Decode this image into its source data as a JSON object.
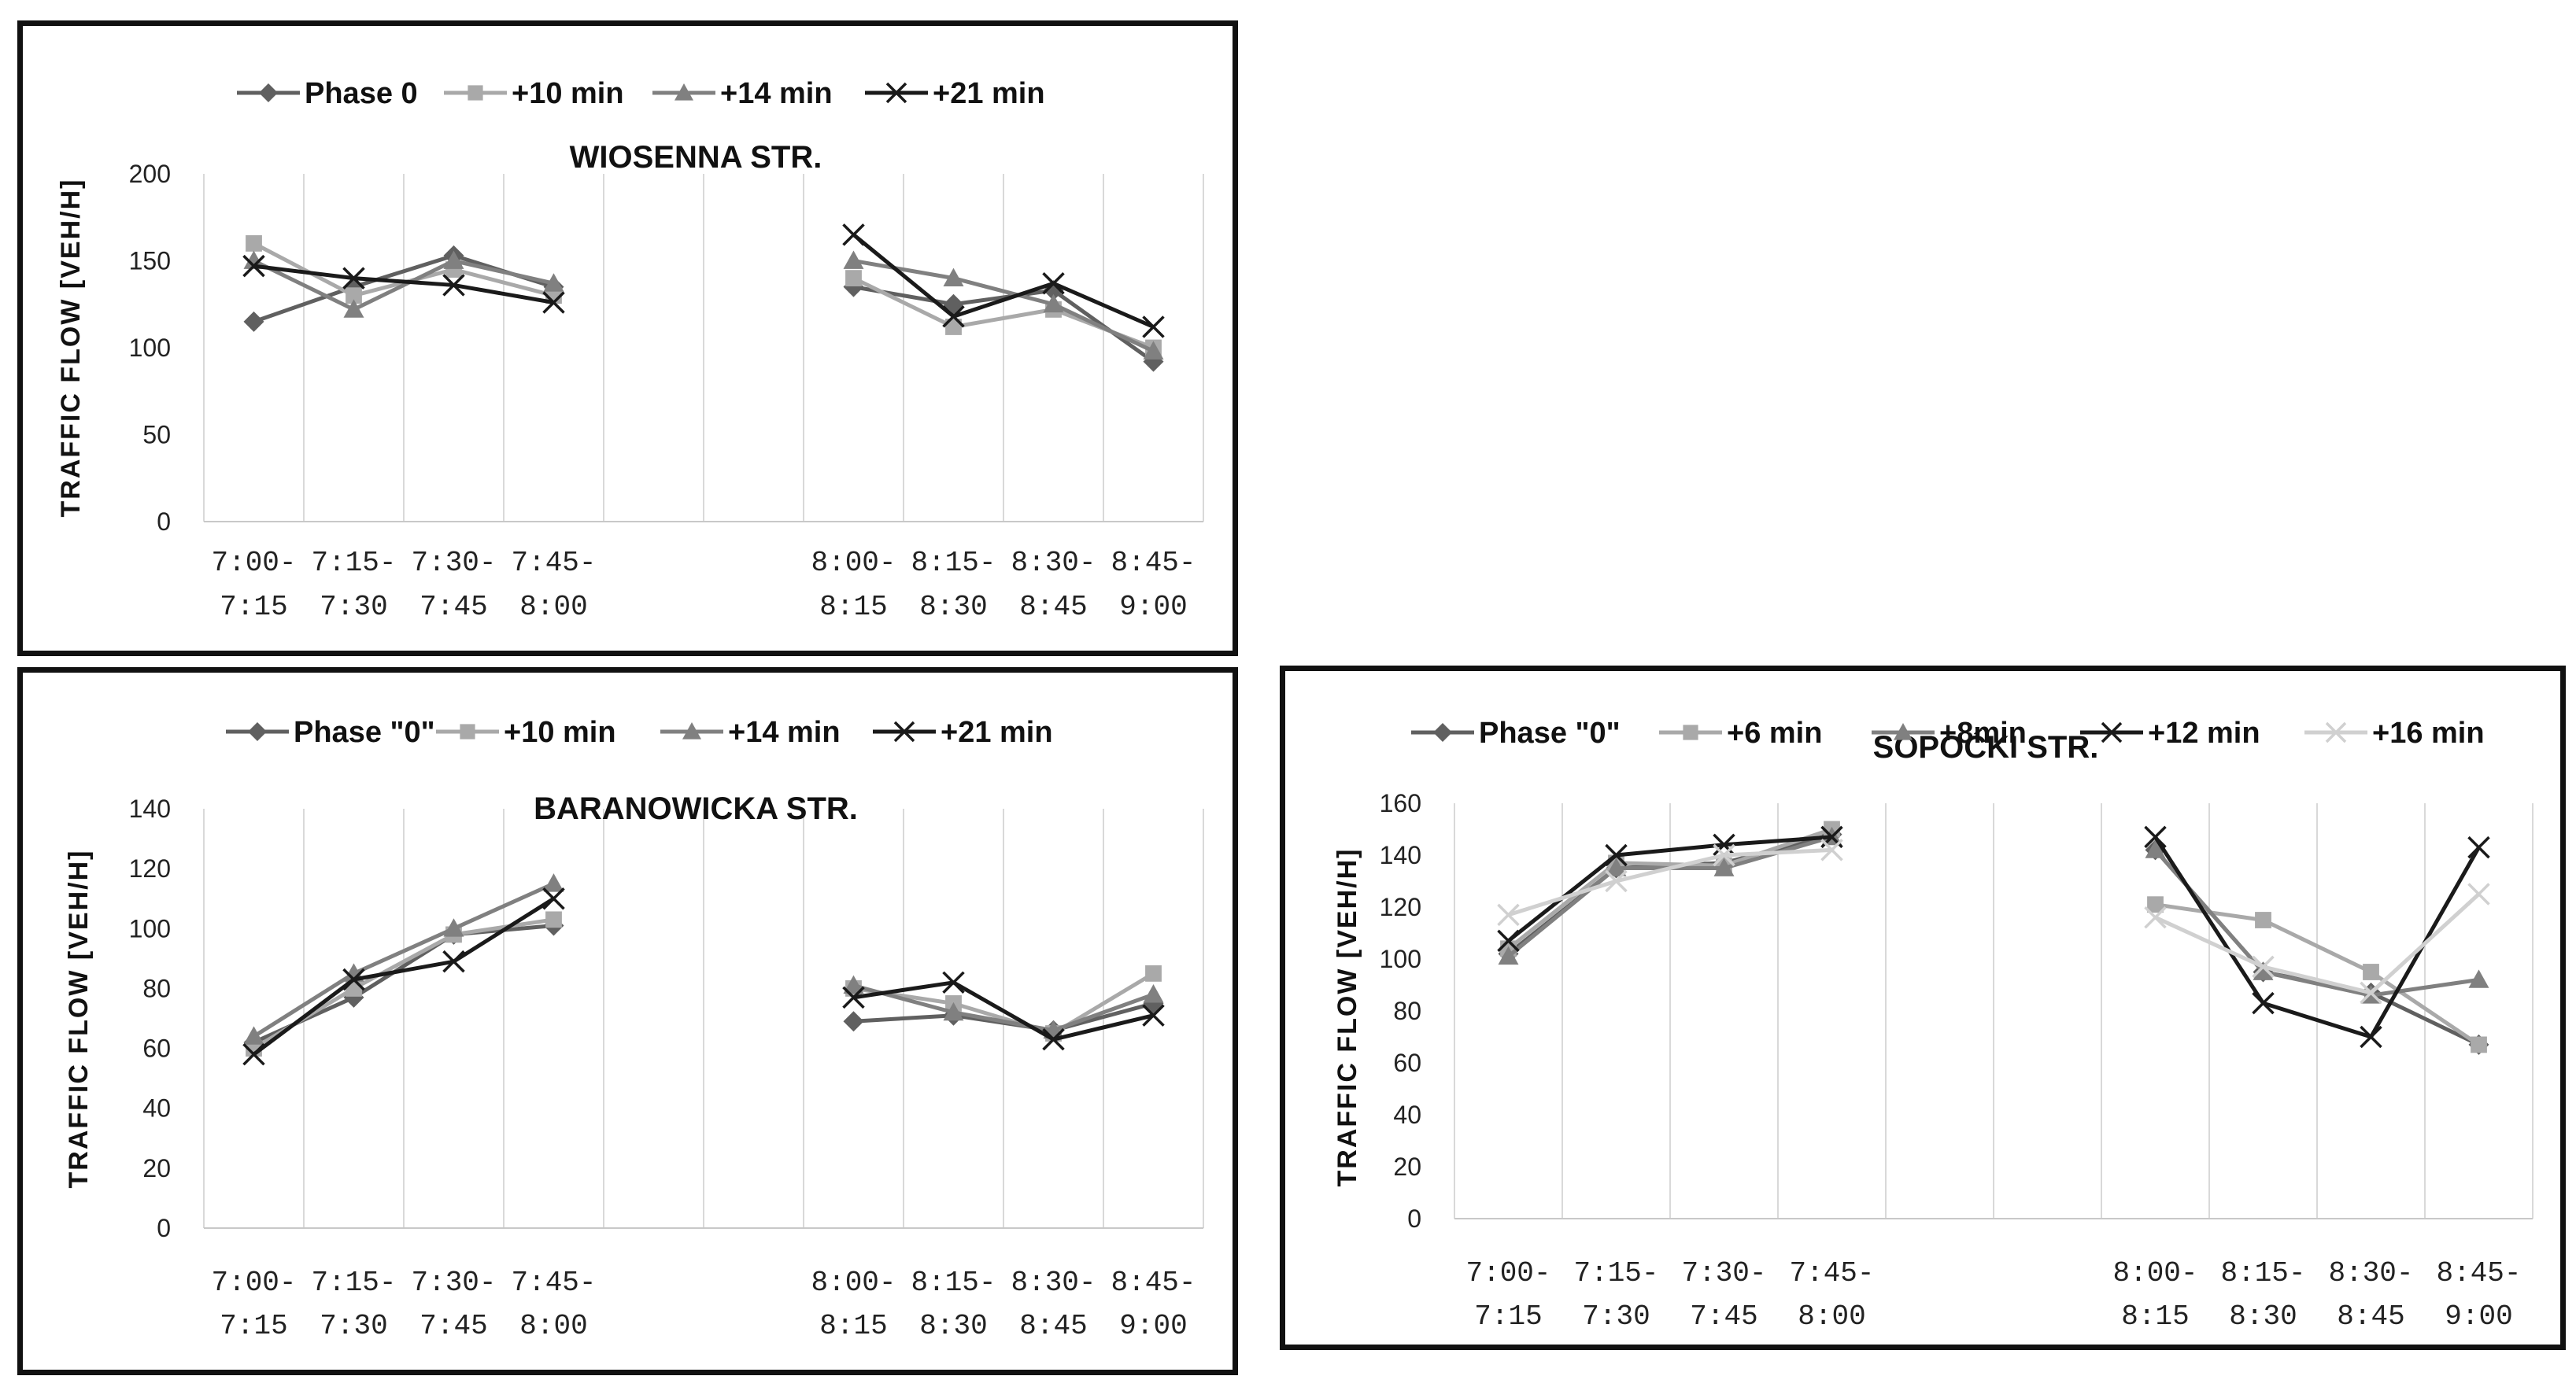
{
  "chart_data": [
    {
      "type": "line",
      "title": "WIOSENNA STR.",
      "ylabel": "TRAFFIC FLOW [VEH/H]",
      "xlabel": "",
      "ylim": [
        0,
        200
      ],
      "yticks": [
        0,
        50,
        100,
        150,
        200
      ],
      "categories": [
        [
          "7:00-",
          "7:15"
        ],
        [
          "7:15-",
          "7:30"
        ],
        [
          "7:30-",
          "7:45"
        ],
        [
          "7:45-",
          "8:00"
        ],
        [
          "8:00-",
          "8:15"
        ],
        [
          "8:15-",
          "8:30"
        ],
        [
          "8:30-",
          "8:45"
        ],
        [
          "8:45-",
          "9:00"
        ]
      ],
      "series": [
        {
          "name": "Phase 0",
          "marker": "diamond",
          "color": "#606060",
          "values": [
            115,
            135,
            153,
            135,
            135,
            125,
            133,
            92
          ]
        },
        {
          "name": "+10 min",
          "marker": "square",
          "color": "#a9a9a9",
          "values": [
            160,
            130,
            145,
            130,
            140,
            112,
            122,
            100
          ]
        },
        {
          "name": "+14 min",
          "marker": "triangle",
          "color": "#808080",
          "values": [
            150,
            122,
            150,
            137,
            150,
            140,
            125,
            98
          ]
        },
        {
          "name": "+21 min",
          "marker": "x",
          "color": "#1a1a1a",
          "values": [
            147,
            140,
            136,
            126,
            165,
            118,
            137,
            112
          ]
        }
      ]
    },
    {
      "type": "line",
      "title": "BARANOWICKA STR.",
      "ylabel": "TRAFFIC FLOW [VEH/H]",
      "xlabel": "",
      "ylim": [
        0,
        140
      ],
      "yticks": [
        0,
        20,
        40,
        60,
        80,
        100,
        120,
        140
      ],
      "categories": [
        [
          "7:00-",
          "7:15"
        ],
        [
          "7:15-",
          "7:30"
        ],
        [
          "7:30-",
          "7:45"
        ],
        [
          "7:45-",
          "8:00"
        ],
        [
          "8:00-",
          "8:15"
        ],
        [
          "8:15-",
          "8:30"
        ],
        [
          "8:30-",
          "8:45"
        ],
        [
          "8:45-",
          "9:00"
        ]
      ],
      "series": [
        {
          "name": "Phase \"0\"",
          "marker": "diamond",
          "color": "#606060",
          "values": [
            62,
            77,
            98,
            101,
            69,
            71,
            66,
            75
          ]
        },
        {
          "name": "+10 min",
          "marker": "square",
          "color": "#a9a9a9",
          "values": [
            60,
            80,
            98,
            103,
            80,
            75,
            65,
            85
          ]
        },
        {
          "name": "+14 min",
          "marker": "triangle",
          "color": "#808080",
          "values": [
            64,
            85,
            100,
            115,
            81,
            72,
            66,
            78
          ]
        },
        {
          "name": "+21 min",
          "marker": "x",
          "color": "#1a1a1a",
          "values": [
            58,
            83,
            89,
            110,
            77,
            82,
            63,
            71
          ]
        }
      ]
    },
    {
      "type": "line",
      "title": "SOPOĆKI STR.",
      "ylabel": "TRAFFIC FLOW [VEH/H]",
      "xlabel": "",
      "ylim": [
        0,
        160
      ],
      "yticks": [
        0,
        20,
        40,
        60,
        80,
        100,
        120,
        140,
        160
      ],
      "categories": [
        [
          "7:00-",
          "7:15"
        ],
        [
          "7:15-",
          "7:30"
        ],
        [
          "7:30-",
          "7:45"
        ],
        [
          "7:45-",
          "8:00"
        ],
        [
          "8:00-",
          "8:15"
        ],
        [
          "8:15-",
          "8:30"
        ],
        [
          "8:30-",
          "8:45"
        ],
        [
          "8:45-",
          "9:00"
        ]
      ],
      "series": [
        {
          "name": "Phase \"0\"",
          "marker": "diamond",
          "color": "#606060",
          "values": [
            102,
            135,
            137,
            148,
            142,
            95,
            87,
            67
          ]
        },
        {
          "name": "+6 min",
          "marker": "square",
          "color": "#a9a9a9",
          "values": [
            104,
            137,
            136,
            150,
            121,
            115,
            95,
            67
          ]
        },
        {
          "name": "+8min",
          "marker": "triangle",
          "color": "#808080",
          "values": [
            101,
            135,
            135,
            147,
            142,
            95,
            86,
            92
          ]
        },
        {
          "name": "+12 min",
          "marker": "x",
          "color": "#1a1a1a",
          "values": [
            107,
            140,
            144,
            147,
            147,
            83,
            70,
            143
          ]
        },
        {
          "name": "+16 min",
          "marker": "x",
          "color": "#d0d0d0",
          "values": [
            117,
            130,
            140,
            142,
            116,
            97,
            87,
            125
          ]
        }
      ]
    }
  ]
}
